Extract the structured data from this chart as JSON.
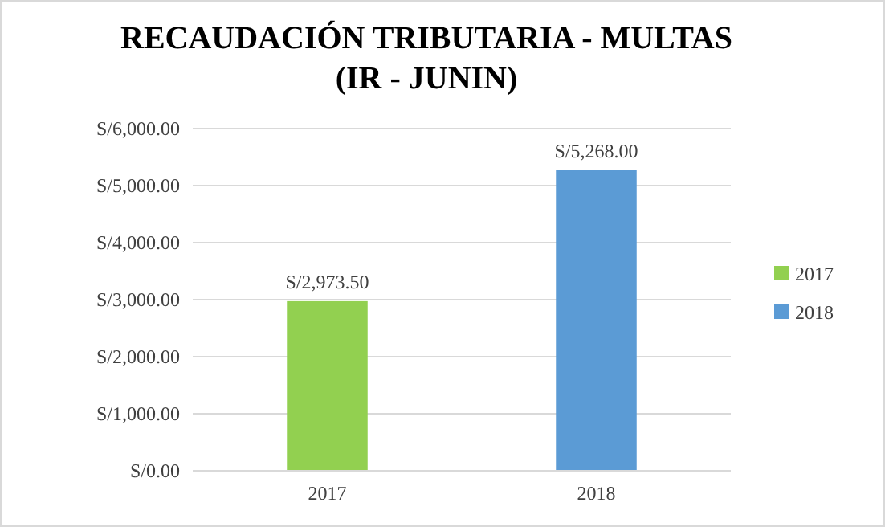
{
  "chart_data": {
    "type": "bar",
    "title": "RECAUDACIÓN TRIBUTARIA - MULTAS\n(IR - JUNIN)",
    "categories": [
      "2017",
      "2018"
    ],
    "stacked": true,
    "series": [
      {
        "name": "2017",
        "color": "#92d050",
        "values": [
          2973.5,
          null
        ],
        "value_labels": [
          "S/2,973.50",
          null
        ]
      },
      {
        "name": "2018",
        "color": "#5b9bd5",
        "values": [
          null,
          5268
        ],
        "value_labels": [
          null,
          "S/5,268.00"
        ]
      }
    ],
    "ylim": [
      0,
      6000
    ],
    "yticks": [
      {
        "value": 0,
        "label": "S/0.00"
      },
      {
        "value": 1000,
        "label": "S/1,000.00"
      },
      {
        "value": 2000,
        "label": "S/2,000.00"
      },
      {
        "value": 3000,
        "label": "S/3,000.00"
      },
      {
        "value": 4000,
        "label": "S/4,000.00"
      },
      {
        "value": 5000,
        "label": "S/5,000.00"
      },
      {
        "value": 6000,
        "label": "S/6,000.00"
      }
    ],
    "grid": "y",
    "legend": "right"
  }
}
